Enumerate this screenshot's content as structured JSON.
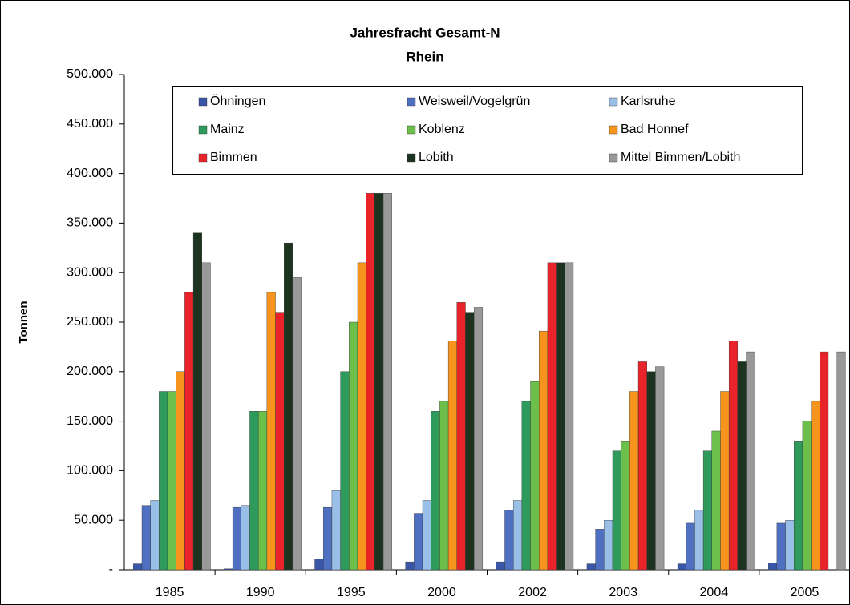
{
  "chart_data": {
    "type": "bar",
    "title": "Jahresfracht Gesamt-N",
    "subtitle": "Rhein",
    "y_label": "Tonnen",
    "categories": [
      "1985",
      "1990",
      "1995",
      "2000",
      "2002",
      "2003",
      "2004",
      "2005"
    ],
    "series": [
      {
        "name": "Öhningen",
        "color": "#3a56a8",
        "values": [
          6000,
          1000,
          11000,
          8000,
          8000,
          6000,
          6000,
          7000
        ]
      },
      {
        "name": "Weisweil/Vogelgrün",
        "color": "#4f6fc0",
        "values": [
          65000,
          63000,
          63000,
          57000,
          60000,
          41000,
          47000,
          47000
        ]
      },
      {
        "name": "Karlsruhe",
        "color": "#99bfe6",
        "values": [
          70000,
          65000,
          80000,
          70000,
          70000,
          50000,
          60000,
          50000
        ]
      },
      {
        "name": "Mainz",
        "color": "#2e9a5c",
        "values": [
          180000,
          160000,
          200000,
          160000,
          170000,
          120000,
          120000,
          130000
        ]
      },
      {
        "name": "Koblenz",
        "color": "#6cbf4a",
        "values": [
          180000,
          160000,
          250000,
          170000,
          190000,
          130000,
          140000,
          150000
        ]
      },
      {
        "name": "Bad Honnef",
        "color": "#f7941d",
        "values": [
          200000,
          280000,
          310000,
          231000,
          241000,
          180000,
          180000,
          170000
        ]
      },
      {
        "name": "Bimmen",
        "color": "#e8232a",
        "values": [
          280000,
          260000,
          380000,
          270000,
          310000,
          210000,
          231000,
          220000
        ]
      },
      {
        "name": "Lobith",
        "color": "#1c3320",
        "values": [
          340000,
          330000,
          380000,
          260000,
          310000,
          200000,
          210000,
          null
        ]
      },
      {
        "name": "Mittel Bimmen/Lobith",
        "color": "#999999",
        "values": [
          310000,
          295000,
          380000,
          265000,
          310000,
          205000,
          220000,
          220000
        ]
      }
    ],
    "ylim": [
      0,
      500000
    ],
    "yticks": [
      {
        "value": 0,
        "label": "-"
      },
      {
        "value": 50000,
        "label": "50.000"
      },
      {
        "value": 100000,
        "label": "100.000"
      },
      {
        "value": 150000,
        "label": "150.000"
      },
      {
        "value": 200000,
        "label": "200.000"
      },
      {
        "value": 250000,
        "label": "250.000"
      },
      {
        "value": 300000,
        "label": "300.000"
      },
      {
        "value": 350000,
        "label": "350.000"
      },
      {
        "value": 400000,
        "label": "400.000"
      },
      {
        "value": 450000,
        "label": "450.000"
      },
      {
        "value": 500000,
        "label": "500.000"
      }
    ],
    "grid": false,
    "legend": "top"
  }
}
